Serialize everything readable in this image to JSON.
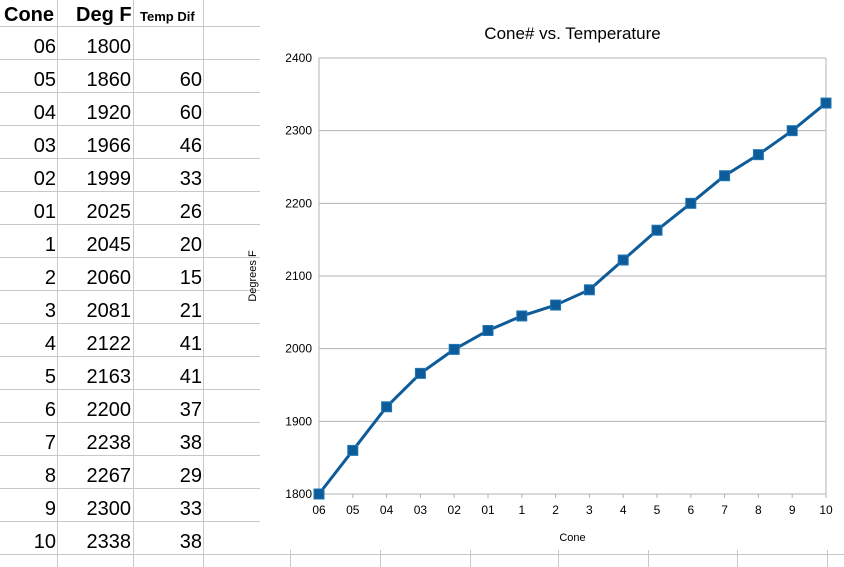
{
  "table": {
    "headers": [
      "Cone",
      "Deg F",
      "Temp Dif"
    ],
    "rows": [
      [
        "06",
        "1800",
        ""
      ],
      [
        "05",
        "1860",
        "60"
      ],
      [
        "04",
        "1920",
        "60"
      ],
      [
        "03",
        "1966",
        "46"
      ],
      [
        "02",
        "1999",
        "33"
      ],
      [
        "01",
        "2025",
        "26"
      ],
      [
        "1",
        "2045",
        "20"
      ],
      [
        "2",
        "2060",
        "15"
      ],
      [
        "3",
        "2081",
        "21"
      ],
      [
        "4",
        "2122",
        "41"
      ],
      [
        "5",
        "2163",
        "41"
      ],
      [
        "6",
        "2200",
        "37"
      ],
      [
        "7",
        "2238",
        "38"
      ],
      [
        "8",
        "2267",
        "29"
      ],
      [
        "9",
        "2300",
        "33"
      ],
      [
        "10",
        "2338",
        "38"
      ]
    ]
  },
  "chart_data": {
    "type": "line",
    "title": "Cone# vs. Temperature",
    "xlabel": "Cone",
    "ylabel": "Degrees F",
    "categories": [
      "06",
      "05",
      "04",
      "03",
      "02",
      "01",
      "1",
      "2",
      "3",
      "4",
      "5",
      "6",
      "7",
      "8",
      "9",
      "10"
    ],
    "series": [
      {
        "values": [
          1800,
          1860,
          1920,
          1966,
          1999,
          2025,
          2045,
          2060,
          2081,
          2122,
          2163,
          2200,
          2238,
          2267,
          2300,
          2338
        ]
      }
    ],
    "ylim": [
      1800,
      2400
    ],
    "yticks": [
      1800,
      1900,
      2000,
      2100,
      2200,
      2300,
      2400
    ],
    "grid": true,
    "legend": "none",
    "colors": {
      "line": "#0d5b99",
      "marker": "#0d5b99",
      "grid": "#b3b3b3"
    }
  }
}
